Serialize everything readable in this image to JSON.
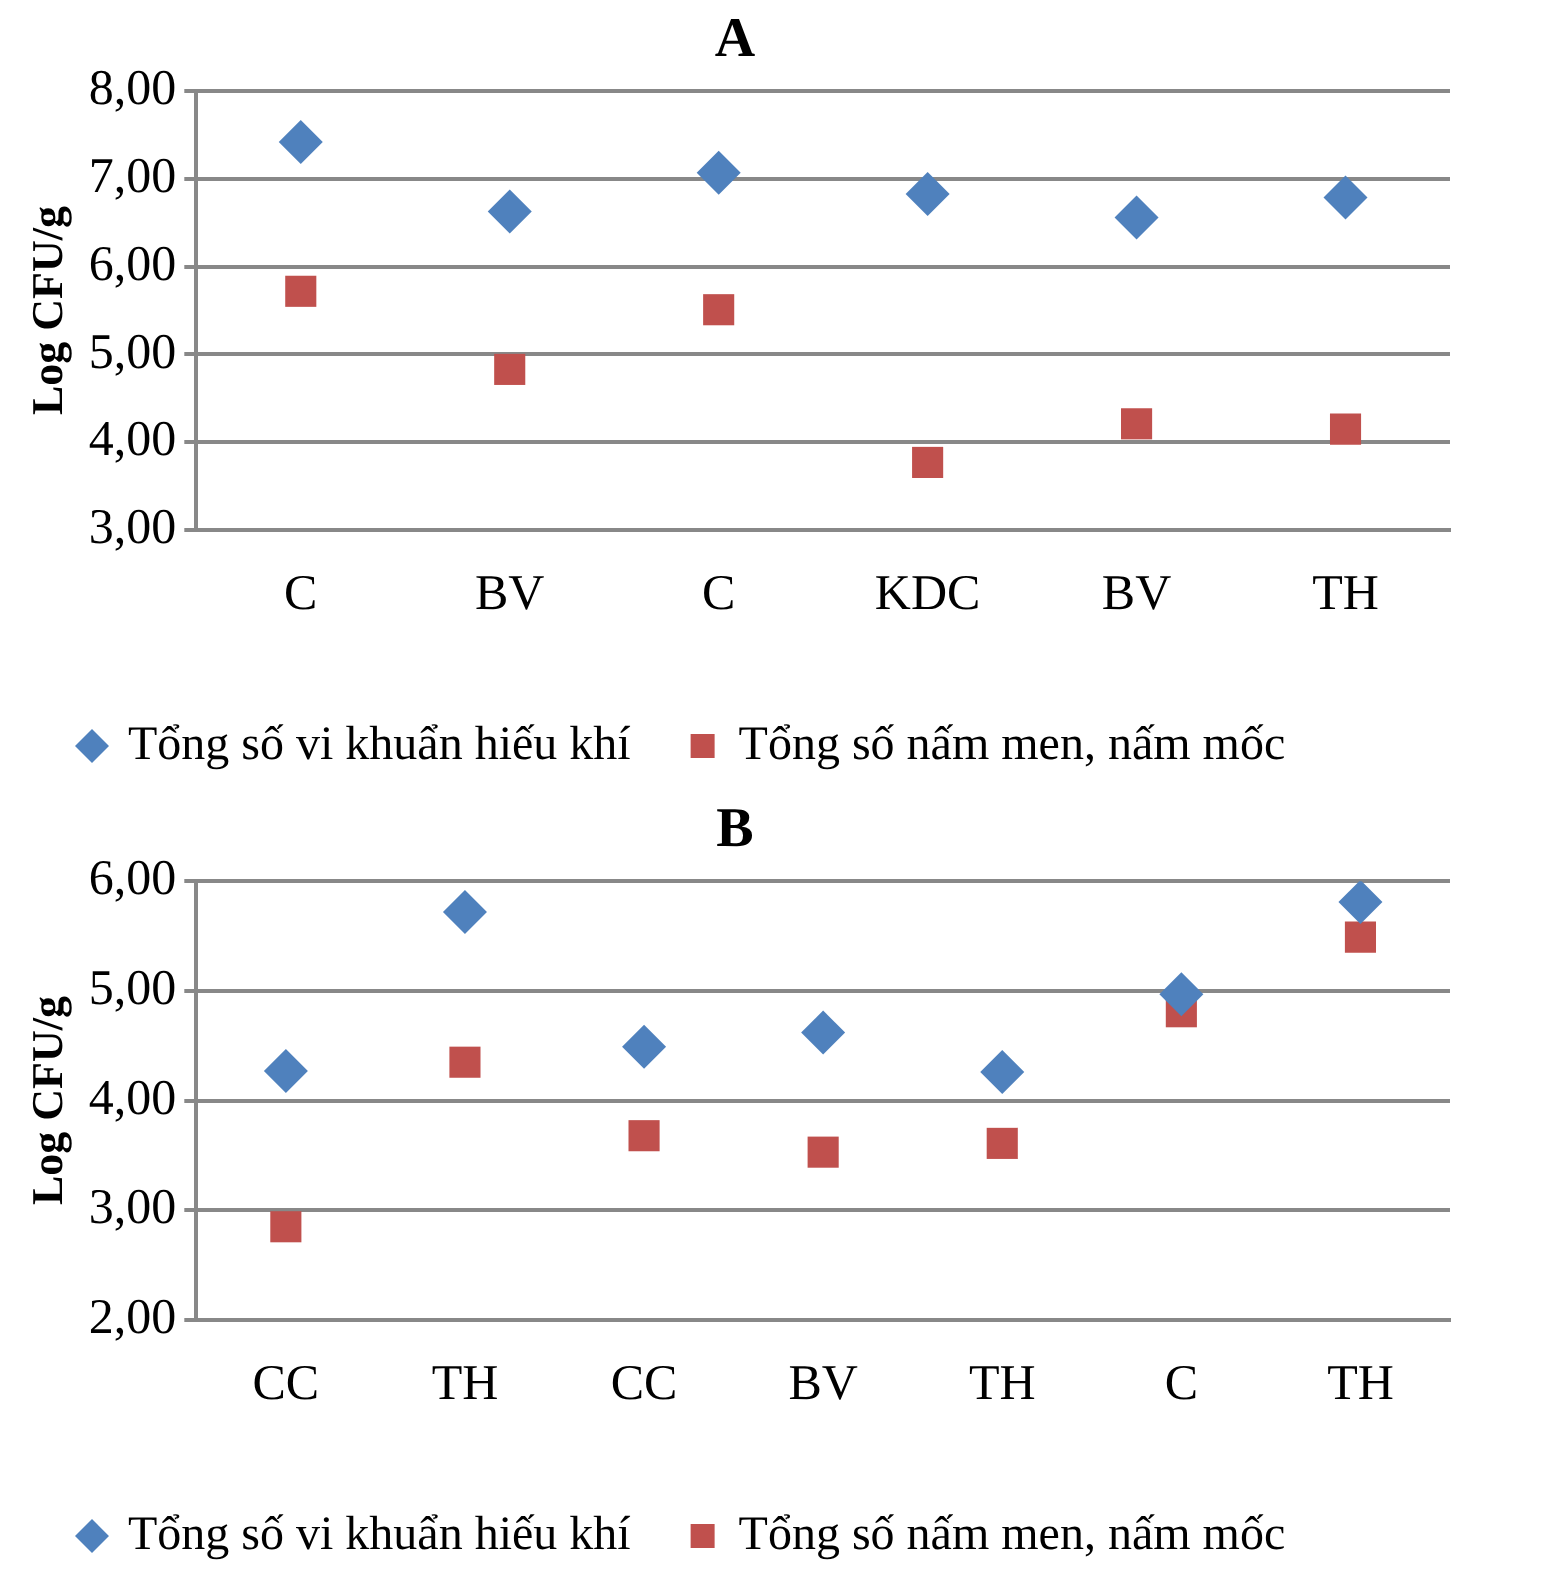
{
  "chart_data": [
    {
      "type": "scatter",
      "title": "A",
      "ylabel": "Log CFU/g",
      "categories": [
        "C",
        "BV",
        "C",
        "KDC",
        "BV",
        "TH"
      ],
      "series": [
        {
          "name": "Tổng số vi khuẩn hiếu khí",
          "color": "#4f81bd",
          "marker": "diamond",
          "values": [
            7.42,
            6.63,
            7.07,
            6.83,
            6.56,
            6.79
          ]
        },
        {
          "name": "Tổng số nấm men, nấm mốc",
          "color": "#c0504d",
          "marker": "square",
          "values": [
            5.72,
            4.83,
            5.51,
            3.77,
            4.21,
            4.15
          ]
        }
      ],
      "ylim": [
        3,
        8
      ],
      "yticks": [
        {
          "value": 3,
          "label": "3,00"
        },
        {
          "value": 4,
          "label": "4,00"
        },
        {
          "value": 5,
          "label": "5,00"
        },
        {
          "value": 6,
          "label": "6,00"
        },
        {
          "value": 7,
          "label": "7,00"
        },
        {
          "value": 8,
          "label": "8,00"
        }
      ],
      "grid": "y",
      "legend": "bottom"
    },
    {
      "type": "scatter",
      "title": "B",
      "ylabel": "Log CFU/g",
      "categories": [
        "CC",
        "TH",
        "CC",
        "BV",
        "TH",
        "C",
        "TH"
      ],
      "series": [
        {
          "name": "Tổng số vi khuẩn hiếu khí",
          "color": "#4f81bd",
          "marker": "diamond",
          "values": [
            4.27,
            5.72,
            4.49,
            4.62,
            4.26,
            4.97,
            5.81
          ]
        },
        {
          "name": "Tổng số nấm men, nấm mốc",
          "color": "#c0504d",
          "marker": "square",
          "values": [
            2.85,
            4.35,
            3.68,
            3.53,
            3.61,
            4.81,
            5.49
          ]
        }
      ],
      "ylim": [
        2,
        6
      ],
      "yticks": [
        {
          "value": 2,
          "label": "2,00"
        },
        {
          "value": 3,
          "label": "3,00"
        },
        {
          "value": 4,
          "label": "4,00"
        },
        {
          "value": 5,
          "label": "5,00"
        },
        {
          "value": 6,
          "label": "6,00"
        }
      ],
      "grid": "y",
      "legend": "bottom"
    }
  ]
}
